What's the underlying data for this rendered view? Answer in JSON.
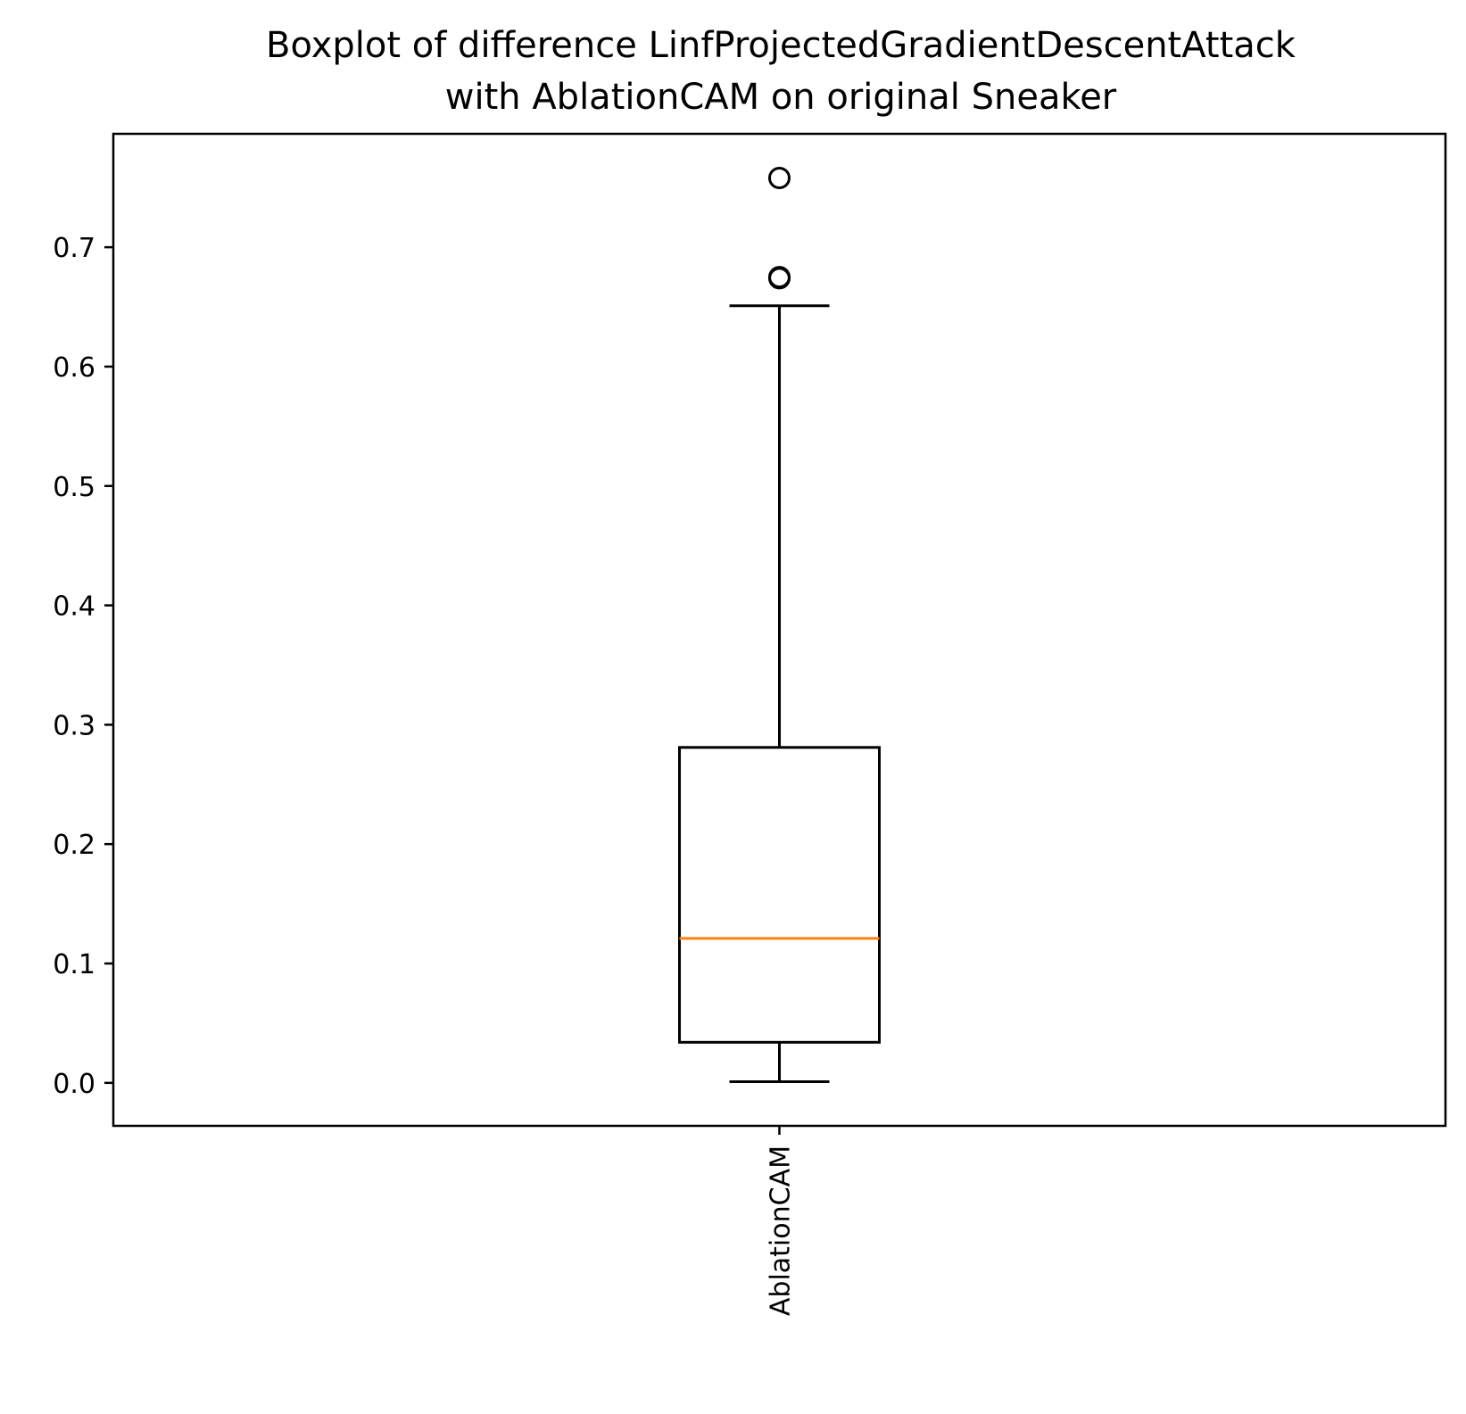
{
  "chart_data": {
    "type": "box",
    "title": "Boxplot of difference LinfProjectedGradientDescentAttack\nwith AblationCAM on original Sneaker",
    "xlabel": "",
    "ylabel": "",
    "ylim": [
      -0.036,
      0.795
    ],
    "yticks": [
      0.0,
      0.1,
      0.2,
      0.3,
      0.4,
      0.5,
      0.6,
      0.7
    ],
    "ytick_labels": [
      "0.0",
      "0.1",
      "0.2",
      "0.3",
      "0.4",
      "0.5",
      "0.6",
      "0.7"
    ],
    "categories": [
      "AblationCAM"
    ],
    "xtick_rotation": "vertical",
    "grid": false,
    "boxes": [
      {
        "label": "AblationCAM",
        "whisker_low": 0.001,
        "q1": 0.034,
        "median": 0.121,
        "q3": 0.281,
        "whisker_high": 0.651,
        "outliers": [
          0.674,
          0.675,
          0.758
        ]
      }
    ],
    "colors": {
      "box": "#000000",
      "median": "#ff7f0e",
      "axes": "#000000",
      "background": "#ffffff"
    }
  }
}
